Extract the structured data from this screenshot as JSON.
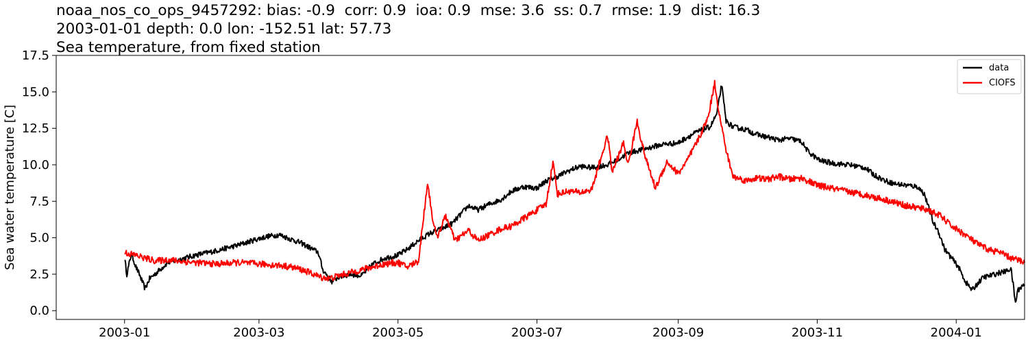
{
  "title": {
    "line1": "noaa_nos_co_ops_9457292: bias: -0.9  corr: 0.9  ioa: 0.9  mse: 3.6  ss: 0.7  rmse: 1.9  dist: 16.3",
    "line2": "2003-01-01 depth: 0.0 lon: -152.51 lat: 57.73",
    "line3": "Sea temperature, from fixed station"
  },
  "chart_data": {
    "type": "line",
    "ylabel": "Sea water temperature [C]",
    "xlabel": "",
    "xlim": [
      "2002-12-02",
      "2004-01-31"
    ],
    "ylim": [
      -0.6,
      17.5
    ],
    "x_ticks": [
      "2003-01",
      "2003-03",
      "2003-05",
      "2003-07",
      "2003-09",
      "2003-11",
      "2004-01"
    ],
    "y_ticks": [
      "0.0",
      "2.5",
      "5.0",
      "7.5",
      "10.0",
      "12.5",
      "15.0",
      "17.5"
    ],
    "legend": {
      "position": "top-right",
      "entries": [
        "data",
        "CIOFS"
      ]
    },
    "grid": false,
    "series": [
      {
        "name": "data",
        "color": "#000000",
        "points": [
          [
            "2003-01-01",
            3.6
          ],
          [
            "2003-01-02",
            2.5
          ],
          [
            "2003-01-04",
            3.9
          ],
          [
            "2003-01-06",
            3.0
          ],
          [
            "2003-01-08",
            2.3
          ],
          [
            "2003-01-10",
            1.5
          ],
          [
            "2003-01-12",
            2.2
          ],
          [
            "2003-01-15",
            2.6
          ],
          [
            "2003-01-20",
            3.3
          ],
          [
            "2003-01-25",
            3.5
          ],
          [
            "2003-02-01",
            3.8
          ],
          [
            "2003-02-10",
            4.1
          ],
          [
            "2003-02-20",
            4.5
          ],
          [
            "2003-02-28",
            4.9
          ],
          [
            "2003-03-05",
            5.1
          ],
          [
            "2003-03-10",
            5.2
          ],
          [
            "2003-03-15",
            4.9
          ],
          [
            "2003-03-20",
            4.6
          ],
          [
            "2003-03-27",
            4.0
          ],
          [
            "2003-03-29",
            2.8
          ],
          [
            "2003-04-02",
            2.0
          ],
          [
            "2003-04-05",
            2.3
          ],
          [
            "2003-04-10",
            2.5
          ],
          [
            "2003-04-15",
            2.4
          ],
          [
            "2003-04-20",
            3.2
          ],
          [
            "2003-04-25",
            3.6
          ],
          [
            "2003-05-01",
            3.8
          ],
          [
            "2003-05-05",
            4.2
          ],
          [
            "2003-05-10",
            4.8
          ],
          [
            "2003-05-15",
            5.3
          ],
          [
            "2003-05-20",
            5.6
          ],
          [
            "2003-05-25",
            6.0
          ],
          [
            "2003-06-01",
            7.2
          ],
          [
            "2003-06-05",
            6.9
          ],
          [
            "2003-06-10",
            7.3
          ],
          [
            "2003-06-15",
            7.6
          ],
          [
            "2003-06-20",
            8.2
          ],
          [
            "2003-06-25",
            8.5
          ],
          [
            "2003-07-01",
            8.4
          ],
          [
            "2003-07-05",
            8.9
          ],
          [
            "2003-07-10",
            9.2
          ],
          [
            "2003-07-15",
            9.6
          ],
          [
            "2003-07-20",
            9.9
          ],
          [
            "2003-07-25",
            9.8
          ],
          [
            "2003-08-01",
            10.0
          ],
          [
            "2003-08-05",
            10.3
          ],
          [
            "2003-08-10",
            10.8
          ],
          [
            "2003-08-15",
            11.0
          ],
          [
            "2003-08-20",
            11.2
          ],
          [
            "2003-08-25",
            11.4
          ],
          [
            "2003-09-01",
            11.5
          ],
          [
            "2003-09-05",
            11.9
          ],
          [
            "2003-09-10",
            12.3
          ],
          [
            "2003-09-15",
            12.6
          ],
          [
            "2003-09-18",
            13.5
          ],
          [
            "2003-09-20",
            15.5
          ],
          [
            "2003-09-22",
            13.0
          ],
          [
            "2003-09-25",
            12.6
          ],
          [
            "2003-10-01",
            12.4
          ],
          [
            "2003-10-05",
            12.1
          ],
          [
            "2003-10-10",
            11.9
          ],
          [
            "2003-10-15",
            11.7
          ],
          [
            "2003-10-20",
            11.8
          ],
          [
            "2003-10-25",
            11.6
          ],
          [
            "2003-10-28",
            10.9
          ],
          [
            "2003-11-02",
            10.3
          ],
          [
            "2003-11-08",
            10.1
          ],
          [
            "2003-11-15",
            10.0
          ],
          [
            "2003-11-22",
            9.8
          ],
          [
            "2003-11-26",
            9.3
          ],
          [
            "2003-12-01",
            8.9
          ],
          [
            "2003-12-05",
            8.7
          ],
          [
            "2003-12-10",
            8.6
          ],
          [
            "2003-12-15",
            8.5
          ],
          [
            "2003-12-18",
            8.0
          ],
          [
            "2003-12-20",
            7.0
          ],
          [
            "2003-12-22",
            6.0
          ],
          [
            "2003-12-24",
            5.5
          ],
          [
            "2003-12-27",
            4.2
          ],
          [
            "2003-12-30",
            3.6
          ],
          [
            "2004-01-02",
            3.0
          ],
          [
            "2004-01-05",
            2.0
          ],
          [
            "2004-01-08",
            1.4
          ],
          [
            "2004-01-10",
            1.8
          ],
          [
            "2004-01-13",
            2.3
          ],
          [
            "2004-01-16",
            2.4
          ],
          [
            "2004-01-20",
            2.6
          ],
          [
            "2004-01-23",
            2.7
          ],
          [
            "2004-01-25",
            2.9
          ],
          [
            "2004-01-26",
            1.8
          ],
          [
            "2004-01-27",
            0.5
          ],
          [
            "2004-01-28",
            1.4
          ],
          [
            "2004-01-30",
            1.7
          ],
          [
            "2004-01-31",
            1.8
          ]
        ]
      },
      {
        "name": "CIOFS",
        "color": "#ff0000",
        "points": [
          [
            "2003-01-01",
            4.0
          ],
          [
            "2003-01-03",
            3.9
          ],
          [
            "2003-01-06",
            3.8
          ],
          [
            "2003-01-10",
            3.6
          ],
          [
            "2003-01-15",
            3.4
          ],
          [
            "2003-01-20",
            3.5
          ],
          [
            "2003-01-25",
            3.4
          ],
          [
            "2003-02-01",
            3.3
          ],
          [
            "2003-02-10",
            3.2
          ],
          [
            "2003-02-20",
            3.3
          ],
          [
            "2003-03-01",
            3.2
          ],
          [
            "2003-03-10",
            3.1
          ],
          [
            "2003-03-15",
            3.0
          ],
          [
            "2003-03-20",
            2.8
          ],
          [
            "2003-03-25",
            2.5
          ],
          [
            "2003-03-28",
            2.3
          ],
          [
            "2003-04-01",
            2.2
          ],
          [
            "2003-04-05",
            2.4
          ],
          [
            "2003-04-10",
            2.6
          ],
          [
            "2003-04-15",
            2.8
          ],
          [
            "2003-04-20",
            3.0
          ],
          [
            "2003-04-25",
            3.2
          ],
          [
            "2003-05-01",
            3.3
          ],
          [
            "2003-05-05",
            3.0
          ],
          [
            "2003-05-10",
            3.4
          ],
          [
            "2003-05-14",
            8.8
          ],
          [
            "2003-05-16",
            6.5
          ],
          [
            "2003-05-18",
            5.0
          ],
          [
            "2003-05-22",
            6.5
          ],
          [
            "2003-05-26",
            4.8
          ],
          [
            "2003-06-01",
            5.5
          ],
          [
            "2003-06-05",
            4.8
          ],
          [
            "2003-06-10",
            5.2
          ],
          [
            "2003-06-15",
            5.6
          ],
          [
            "2003-06-20",
            5.8
          ],
          [
            "2003-06-25",
            6.3
          ],
          [
            "2003-07-01",
            6.9
          ],
          [
            "2003-07-05",
            7.3
          ],
          [
            "2003-07-08",
            10.2
          ],
          [
            "2003-07-10",
            8.0
          ],
          [
            "2003-07-15",
            8.2
          ],
          [
            "2003-07-20",
            8.1
          ],
          [
            "2003-07-25",
            8.3
          ],
          [
            "2003-08-01",
            12.0
          ],
          [
            "2003-08-03",
            9.5
          ],
          [
            "2003-08-08",
            11.5
          ],
          [
            "2003-08-10",
            10.0
          ],
          [
            "2003-08-14",
            13.0
          ],
          [
            "2003-08-16",
            11.5
          ],
          [
            "2003-08-18",
            10.3
          ],
          [
            "2003-08-22",
            8.4
          ],
          [
            "2003-08-27",
            10.2
          ],
          [
            "2003-09-01",
            9.4
          ],
          [
            "2003-09-05",
            10.3
          ],
          [
            "2003-09-10",
            11.8
          ],
          [
            "2003-09-14",
            13.2
          ],
          [
            "2003-09-17",
            15.6
          ],
          [
            "2003-09-19",
            13.5
          ],
          [
            "2003-09-22",
            11.0
          ],
          [
            "2003-09-25",
            9.2
          ],
          [
            "2003-10-01",
            8.9
          ],
          [
            "2003-10-05",
            9.1
          ],
          [
            "2003-10-10",
            9.0
          ],
          [
            "2003-10-15",
            9.2
          ],
          [
            "2003-10-20",
            9.0
          ],
          [
            "2003-10-25",
            9.1
          ],
          [
            "2003-11-01",
            8.6
          ],
          [
            "2003-11-10",
            8.3
          ],
          [
            "2003-11-20",
            8.0
          ],
          [
            "2003-12-01",
            7.6
          ],
          [
            "2003-12-10",
            7.2
          ],
          [
            "2003-12-20",
            6.9
          ],
          [
            "2003-12-25",
            6.5
          ],
          [
            "2003-12-30",
            5.8
          ],
          [
            "2004-01-05",
            5.2
          ],
          [
            "2004-01-10",
            4.6
          ],
          [
            "2004-01-15",
            4.2
          ],
          [
            "2004-01-20",
            4.0
          ],
          [
            "2004-01-25",
            3.6
          ],
          [
            "2004-01-30",
            3.4
          ],
          [
            "2004-01-31",
            3.3
          ]
        ]
      }
    ]
  }
}
